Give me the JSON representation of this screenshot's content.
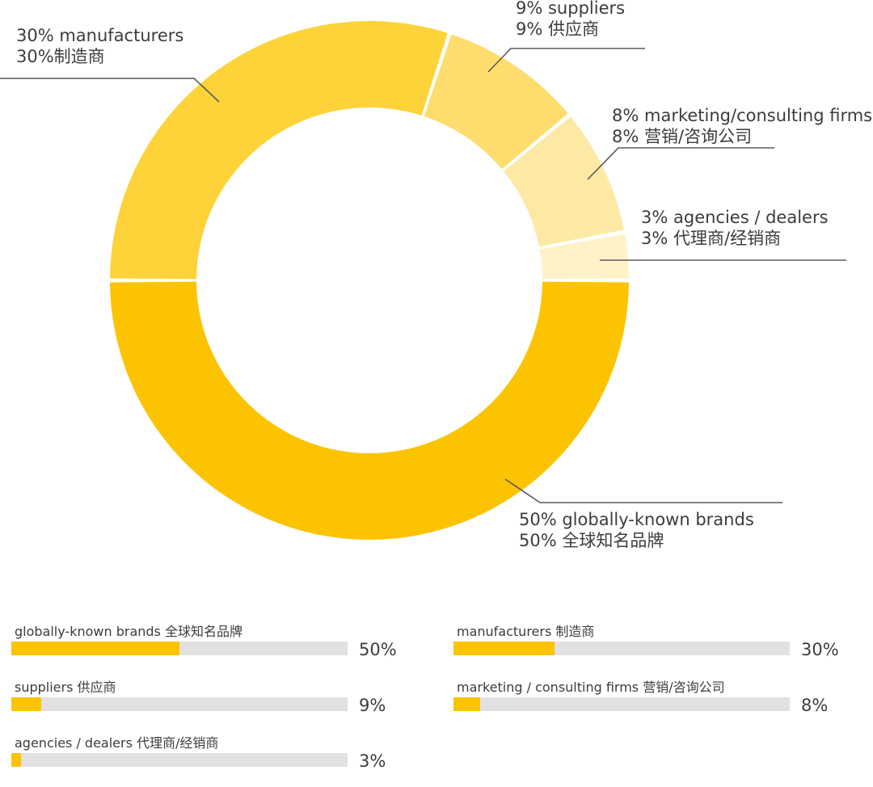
{
  "chart_data": [
    {
      "type": "pie",
      "title": "",
      "categories": [
        "globally-known brands",
        "manufacturers",
        "suppliers",
        "marketing/consulting firms",
        "agencies / dealers"
      ],
      "values": [
        50,
        30,
        9,
        8,
        3
      ],
      "colors": [
        "#fcc300",
        "#fdd339",
        "#fedd6e",
        "#fee9a4",
        "#fff2c9"
      ],
      "callouts": [
        {
          "line1": "50% globally-known brands",
          "line2": "50% 全球知名品牌"
        },
        {
          "line1": "30% manufacturers",
          "line2": "30%制造商"
        },
        {
          "line1": "9% suppliers",
          "line2": "9% 供应商"
        },
        {
          "line1": "8% marketing/consulting firms",
          "line2": "8% 营销/咨询公司"
        },
        {
          "line1": "3% agencies / dealers",
          "line2": "3% 代理商/经销商"
        }
      ]
    },
    {
      "type": "bar",
      "orientation": "horizontal",
      "track_color": "#e1e1e1",
      "fill_color": "#fcc300",
      "items": [
        {
          "label": "globally-known brands 全球知名品牌",
          "value": 50,
          "pct": "50%"
        },
        {
          "label": "manufacturers 制造商",
          "value": 30,
          "pct": "30%"
        },
        {
          "label": "suppliers 供应商",
          "value": 9,
          "pct": "9%"
        },
        {
          "label": "marketing / consulting firms 营销/咨询公司",
          "value": 8,
          "pct": "8%"
        },
        {
          "label": "agencies / dealers 代理商/经销商",
          "value": 3,
          "pct": "3%"
        }
      ]
    }
  ]
}
